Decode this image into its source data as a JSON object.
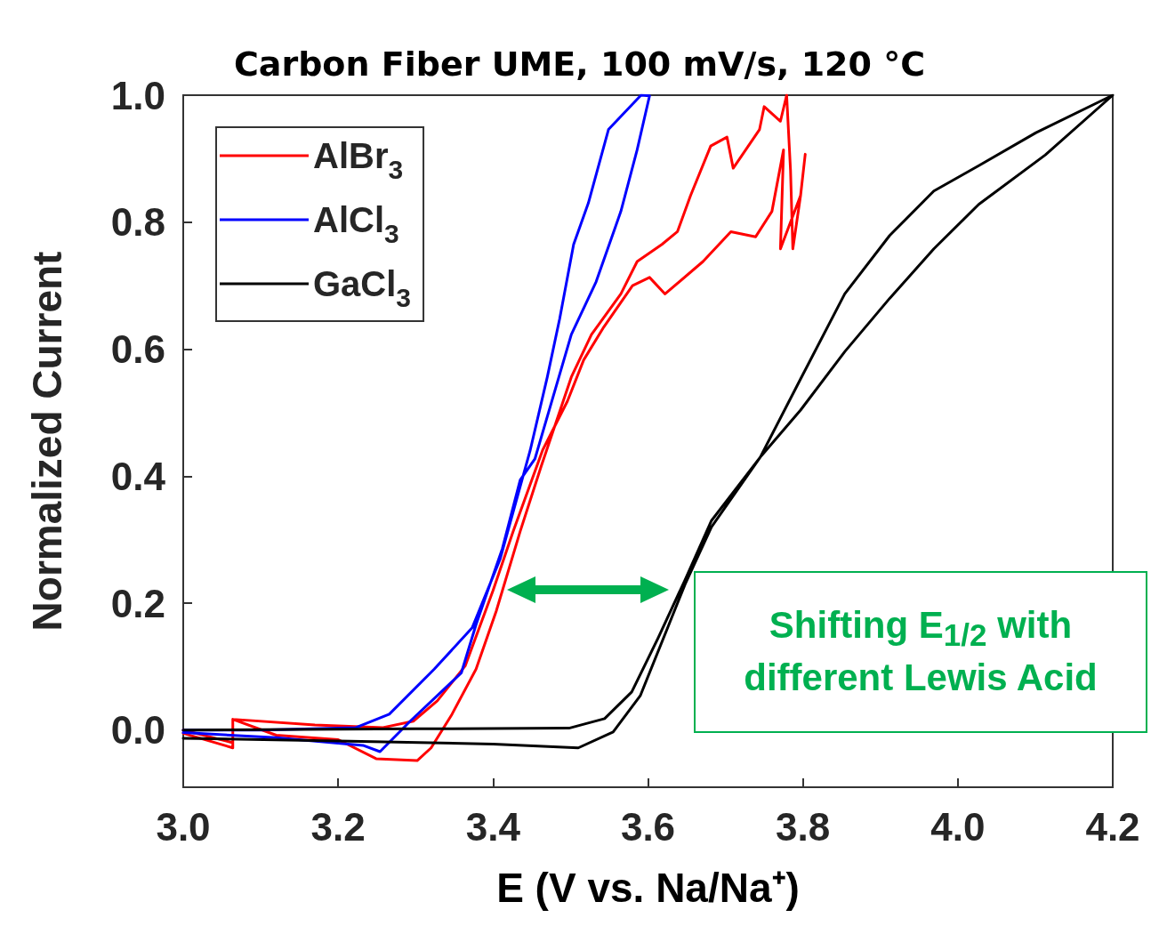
{
  "chart_data": {
    "type": "line",
    "title": "Carbon Fiber UME, 100 mV/s, 120 °C",
    "xlabel": "E (V vs. Na/Na⁺)",
    "ylabel": "Normalized Current",
    "xlim": [
      3.0,
      4.2
    ],
    "xticks": [
      {
        "value": 3.0,
        "label": "3.0"
      },
      {
        "value": 3.2,
        "label": "3.2"
      },
      {
        "value": 3.4,
        "label": "3.4"
      },
      {
        "value": 3.6,
        "label": "3.6"
      },
      {
        "value": 3.8,
        "label": "3.8"
      },
      {
        "value": 4.0,
        "label": "4.0"
      },
      {
        "value": 4.2,
        "label": "4.2"
      }
    ],
    "ylim": [
      -0.09,
      1.0
    ],
    "yticks": [
      {
        "value": 0,
        "label": "0.0"
      },
      {
        "value": 0.2,
        "label": "0.2"
      },
      {
        "value": 0.4,
        "label": "0.4"
      },
      {
        "value": 0.6,
        "label": "0.6"
      },
      {
        "value": 0.8,
        "label": "0.8"
      },
      {
        "value": 1.0,
        "label": "1.0"
      }
    ],
    "grid": false,
    "legend": "top left",
    "marker": "none",
    "line_style": "solid",
    "annotations": [
      "Shifting E$_{1/2}$ with different Lewis Acid"
    ],
    "series": [
      {
        "name": "AlBr$_{3}$",
        "color": "#ff0000",
        "x": [
          3.0,
          3.064,
          3.064,
          3.12,
          3.2,
          3.249,
          3.302,
          3.32,
          3.347,
          3.378,
          3.404,
          3.435,
          3.462,
          3.501,
          3.527,
          3.565,
          3.586,
          3.618,
          3.638,
          3.655,
          3.681,
          3.702,
          3.71,
          3.744,
          3.75,
          3.771,
          3.779,
          3.784,
          3.787,
          3.797,
          3.803,
          3.797,
          3.771,
          3.775,
          3.76,
          3.739,
          3.707,
          3.671,
          3.622,
          3.602,
          3.58,
          3.543,
          3.517,
          3.496,
          3.464,
          3.426,
          3.4,
          3.364,
          3.328,
          3.297,
          3.258,
          3.17,
          3.064,
          3.064,
          3.0
        ],
        "values": [
          -0.005,
          -0.028,
          0.017,
          -0.008,
          -0.015,
          -0.045,
          -0.048,
          -0.028,
          0.025,
          0.096,
          0.187,
          0.313,
          0.415,
          0.556,
          0.623,
          0.687,
          0.738,
          0.765,
          0.785,
          0.842,
          0.92,
          0.934,
          0.885,
          0.946,
          0.982,
          0.959,
          1.0,
          0.882,
          0.758,
          0.842,
          0.907,
          0.842,
          0.758,
          0.914,
          0.817,
          0.777,
          0.785,
          0.738,
          0.687,
          0.713,
          0.7,
          0.635,
          0.583,
          0.518,
          0.441,
          0.313,
          0.22,
          0.101,
          0.046,
          0.014,
          0.004,
          0.008,
          0.017,
          -0.02,
          0.0
        ]
      },
      {
        "name": "AlCl$_{3}$",
        "color": "#0000ff",
        "x": [
          3.0,
          3.12,
          3.232,
          3.254,
          3.293,
          3.359,
          3.378,
          3.412,
          3.435,
          3.454,
          3.501,
          3.533,
          3.565,
          3.586,
          3.602,
          3.591,
          3.549,
          3.523,
          3.504,
          3.486,
          3.47,
          3.448,
          3.409,
          3.373,
          3.324,
          3.266,
          3.223,
          3.1,
          3.0
        ],
        "values": [
          -0.004,
          -0.012,
          -0.024,
          -0.034,
          0.014,
          0.09,
          0.166,
          0.286,
          0.394,
          0.427,
          0.623,
          0.706,
          0.817,
          0.914,
          0.999,
          1.0,
          0.946,
          0.83,
          0.765,
          0.648,
          0.556,
          0.441,
          0.269,
          0.161,
          0.096,
          0.025,
          0.004,
          0.0,
          0.0
        ]
      },
      {
        "name": "GaCl$_{3}$",
        "color": "#000000",
        "x": [
          3.0,
          3.2,
          3.4,
          3.51,
          3.555,
          3.59,
          3.625,
          3.648,
          3.682,
          3.745,
          3.797,
          3.854,
          3.912,
          3.969,
          4.027,
          4.101,
          4.2,
          4.113,
          4.027,
          3.969,
          3.912,
          3.854,
          3.797,
          3.745,
          3.682,
          3.648,
          3.613,
          3.579,
          3.544,
          3.498,
          3.3,
          3.0
        ],
        "values": [
          -0.013,
          -0.017,
          -0.022,
          -0.028,
          -0.003,
          0.054,
          0.16,
          0.23,
          0.32,
          0.43,
          0.553,
          0.687,
          0.779,
          0.849,
          0.889,
          0.941,
          1.0,
          0.906,
          0.828,
          0.758,
          0.68,
          0.596,
          0.504,
          0.43,
          0.33,
          0.237,
          0.145,
          0.06,
          0.018,
          0.003,
          0.002,
          0.0
        ]
      }
    ]
  }
}
